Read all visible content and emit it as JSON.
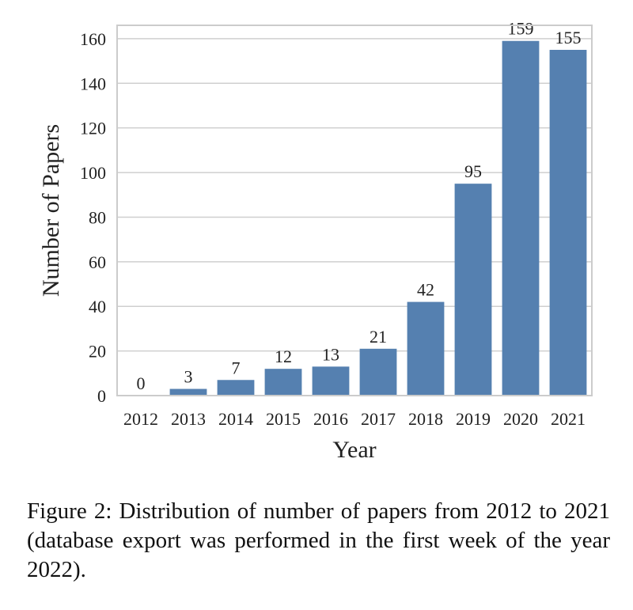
{
  "chart_data": {
    "type": "bar",
    "categories": [
      "2012",
      "2013",
      "2014",
      "2015",
      "2016",
      "2017",
      "2018",
      "2019",
      "2020",
      "2021"
    ],
    "values": [
      0,
      3,
      7,
      12,
      13,
      21,
      42,
      95,
      159,
      155
    ],
    "xlabel": "Year",
    "ylabel": "Number of Papers",
    "ylim": [
      0,
      166
    ],
    "yticks": [
      0,
      20,
      40,
      60,
      80,
      100,
      120,
      140,
      160
    ],
    "grid": true,
    "bar_color": "#5580b0",
    "data_labels": true
  },
  "caption": "Figure 2: Distribution of number of papers from 2012 to 2021 (database export was performed in the first week of the year 2022)."
}
